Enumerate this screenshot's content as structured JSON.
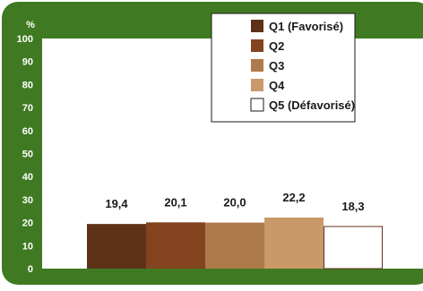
{
  "colors": {
    "frame": "#3f7a22",
    "plot_background": "#ffffff",
    "tick_text": "#ffffff",
    "label_text": "#1a1a1a",
    "q1": "#5e3219",
    "q2": "#84431f",
    "q3": "#ae7a4b",
    "q4": "#c9996a",
    "q5": "#ffffff",
    "bar_outline": "#5e3219"
  },
  "chart_data": {
    "type": "bar",
    "title": "",
    "xlabel": "",
    "ylabel": "%",
    "ylim": [
      0,
      100
    ],
    "y_ticks": [
      "0",
      "10",
      "20",
      "30",
      "40",
      "50",
      "60",
      "70",
      "80",
      "90",
      "100"
    ],
    "categories": [
      "Q1 (Favorisé)",
      "Q2",
      "Q3",
      "Q4",
      "Q5 (Défavorisé)"
    ],
    "values": [
      19.4,
      20.1,
      20.0,
      22.2,
      18.3
    ],
    "value_labels": [
      "19,4",
      "20,1",
      "20,0",
      "22,2",
      "18,3"
    ],
    "legend": {
      "placement": "top-right",
      "entries": [
        "Q1 (Favorisé)",
        "Q2",
        "Q3",
        "Q4",
        "Q5 (Défavorisé)"
      ]
    },
    "grid": false
  }
}
